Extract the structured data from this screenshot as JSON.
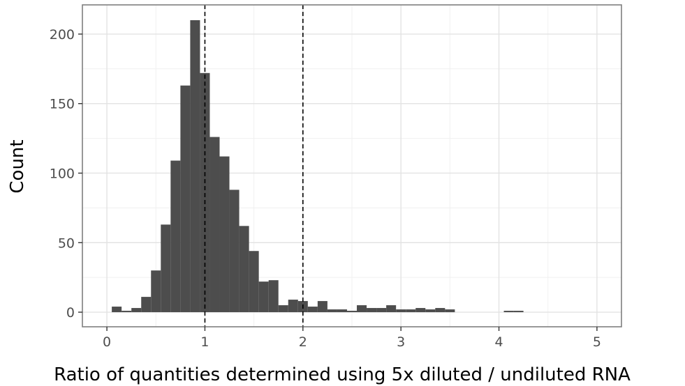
{
  "chart_data": {
    "type": "bar",
    "title": "",
    "xlabel": "Ratio of quantities determined using 5x diluted / undiluted RNA",
    "ylabel": "Count",
    "xlim": [
      -0.25,
      5.25
    ],
    "ylim": [
      -10.5,
      221
    ],
    "x_ticks": [
      "0",
      "1",
      "2",
      "3",
      "4",
      "5"
    ],
    "y_ticks": [
      "0",
      "50",
      "100",
      "150",
      "200"
    ],
    "grid": true,
    "bin_width": 0.1,
    "bins": [
      {
        "x": 0.1,
        "count": 4
      },
      {
        "x": 0.2,
        "count": 1
      },
      {
        "x": 0.3,
        "count": 3
      },
      {
        "x": 0.4,
        "count": 11
      },
      {
        "x": 0.5,
        "count": 30
      },
      {
        "x": 0.6,
        "count": 63
      },
      {
        "x": 0.7,
        "count": 109
      },
      {
        "x": 0.8,
        "count": 163
      },
      {
        "x": 0.9,
        "count": 210
      },
      {
        "x": 1.0,
        "count": 172
      },
      {
        "x": 1.1,
        "count": 126
      },
      {
        "x": 1.2,
        "count": 112
      },
      {
        "x": 1.3,
        "count": 88
      },
      {
        "x": 1.4,
        "count": 62
      },
      {
        "x": 1.5,
        "count": 44
      },
      {
        "x": 1.6,
        "count": 22
      },
      {
        "x": 1.7,
        "count": 23
      },
      {
        "x": 1.8,
        "count": 5
      },
      {
        "x": 1.9,
        "count": 9
      },
      {
        "x": 2.0,
        "count": 8
      },
      {
        "x": 2.1,
        "count": 4
      },
      {
        "x": 2.2,
        "count": 8
      },
      {
        "x": 2.3,
        "count": 2
      },
      {
        "x": 2.4,
        "count": 2
      },
      {
        "x": 2.5,
        "count": 1
      },
      {
        "x": 2.6,
        "count": 5
      },
      {
        "x": 2.7,
        "count": 3
      },
      {
        "x": 2.8,
        "count": 3
      },
      {
        "x": 2.9,
        "count": 5
      },
      {
        "x": 3.0,
        "count": 2
      },
      {
        "x": 3.1,
        "count": 2
      },
      {
        "x": 3.2,
        "count": 3
      },
      {
        "x": 3.3,
        "count": 2
      },
      {
        "x": 3.4,
        "count": 3
      },
      {
        "x": 3.5,
        "count": 2
      },
      {
        "x": 4.1,
        "count": 1
      },
      {
        "x": 4.2,
        "count": 1
      }
    ],
    "vlines": [
      1,
      2
    ],
    "bar_color": "#4d4d4d",
    "vline_color": "#000000"
  }
}
